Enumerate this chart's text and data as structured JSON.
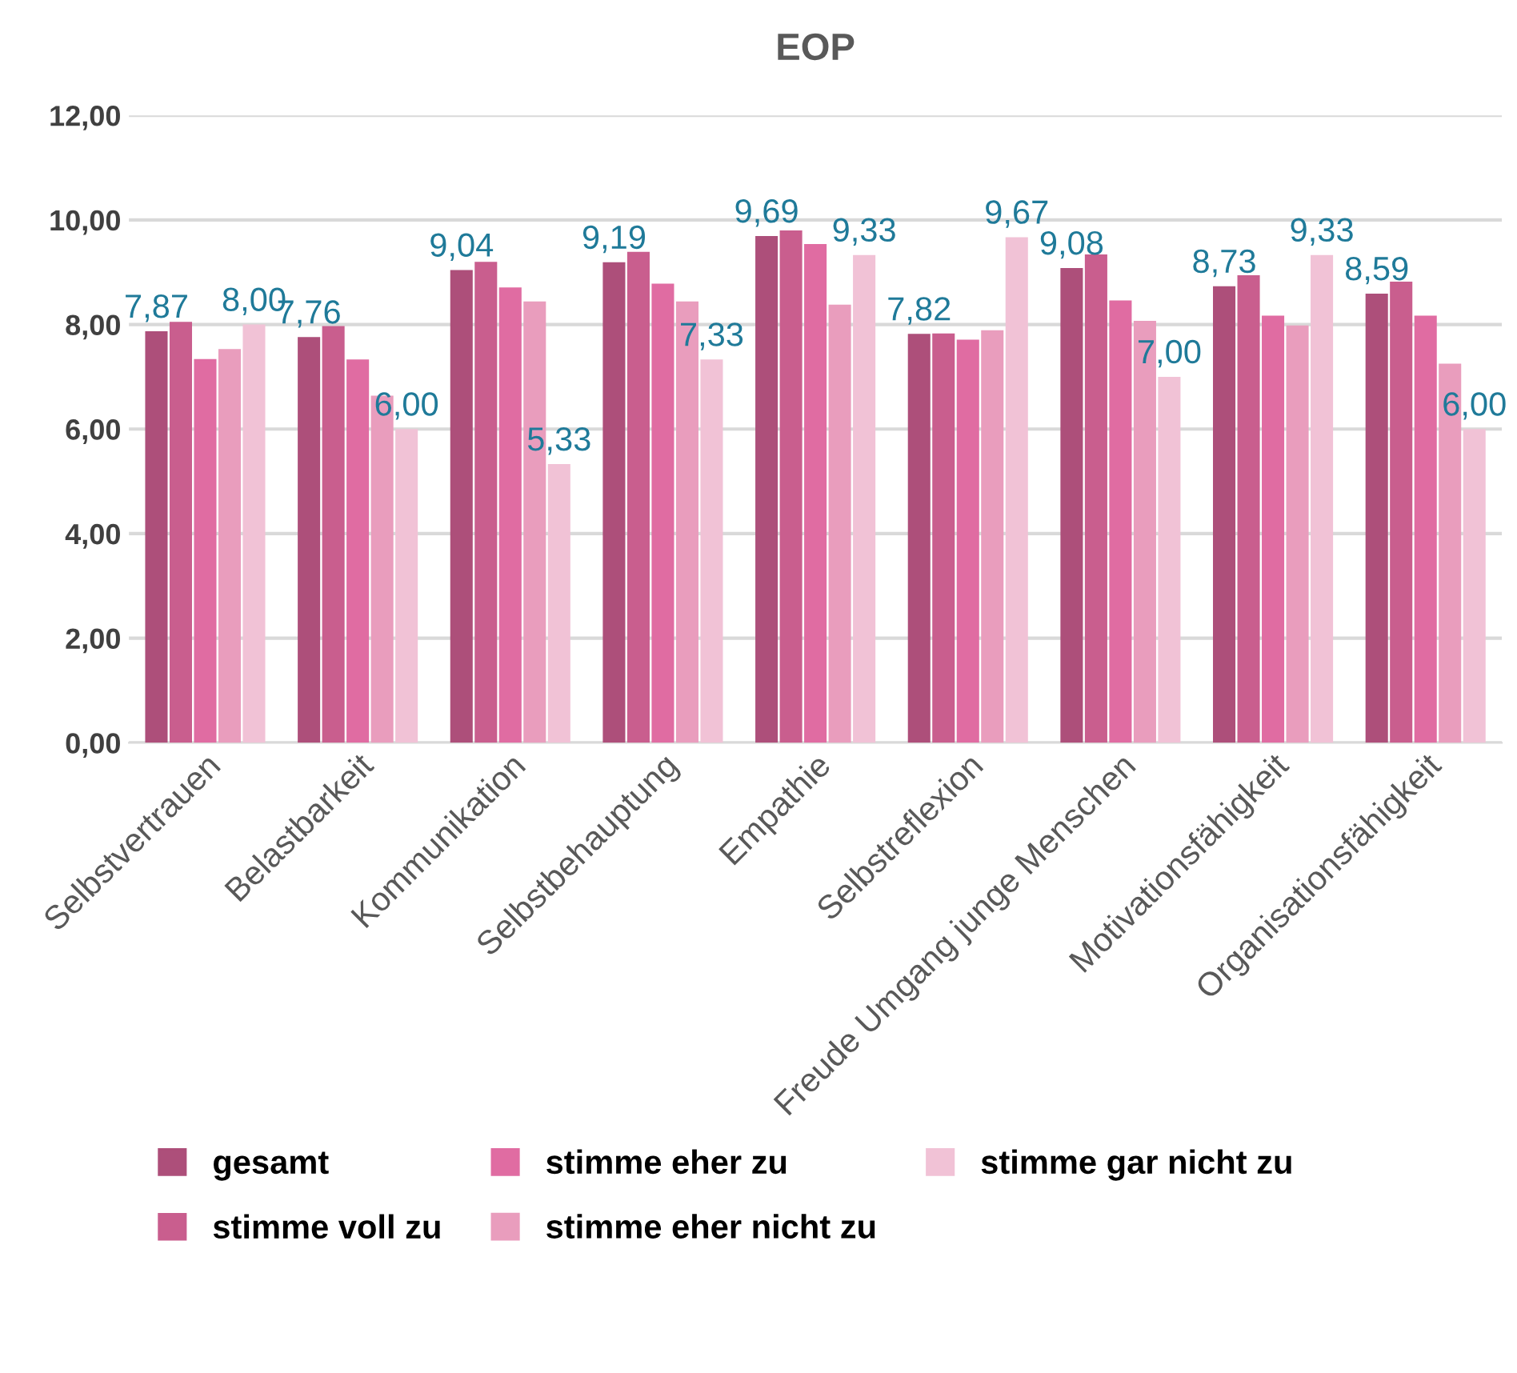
{
  "chart_data": {
    "type": "bar",
    "title": "EOP",
    "categories": [
      "Selbstvertrauen",
      "Belastbarkeit",
      "Kommunikation",
      "Selbstbehauptung",
      "Empathie",
      "Selbstreflexion",
      "Freude Umgang junge Menschen",
      "Motivationsfähigkeit",
      "Organisationsfähigkeit"
    ],
    "series": [
      {
        "name": "gesamt",
        "color": "#ad4f7a",
        "values": [
          7.87,
          7.76,
          9.04,
          9.19,
          9.69,
          7.82,
          9.08,
          8.73,
          8.59
        ],
        "value_labels": [
          "7,87",
          "7,76",
          "9,04",
          "9,19",
          "9,69",
          "7,82",
          "9,08",
          "8,73",
          "8,59"
        ]
      },
      {
        "name": "stimme voll zu",
        "color": "#c95e8e",
        "values": [
          8.05,
          7.97,
          9.2,
          9.39,
          9.8,
          7.83,
          9.34,
          8.94,
          8.82
        ]
      },
      {
        "name": "stimme eher zu",
        "color": "#e06ca2",
        "values": [
          7.34,
          7.33,
          8.71,
          8.78,
          9.54,
          7.71,
          8.46,
          8.17,
          8.17
        ]
      },
      {
        "name": "stimme eher nicht zu",
        "color": "#e99dbd",
        "values": [
          7.53,
          6.64,
          8.44,
          8.44,
          8.38,
          7.89,
          8.07,
          7.98,
          7.25
        ]
      },
      {
        "name": "stimme gar nicht zu",
        "color": "#f1c2d6",
        "values": [
          8.0,
          6.0,
          5.33,
          7.33,
          9.33,
          9.67,
          7.0,
          9.33,
          6.0
        ],
        "value_labels": [
          "8,00",
          "6,00",
          "5,33",
          "7,33",
          "9,33",
          "9,67",
          "7,00",
          "9,33",
          "6,00"
        ]
      }
    ],
    "ylim": [
      0,
      12
    ],
    "yticks": [
      {
        "value": 0,
        "label": "0,00"
      },
      {
        "value": 2,
        "label": "2,00"
      },
      {
        "value": 4,
        "label": "4,00"
      },
      {
        "value": 6,
        "label": "6,00"
      },
      {
        "value": 8,
        "label": "8,00"
      },
      {
        "value": 10,
        "label": "10,00"
      },
      {
        "value": 12,
        "label": "12,00"
      }
    ],
    "grid": "y",
    "legend": "bottom"
  }
}
